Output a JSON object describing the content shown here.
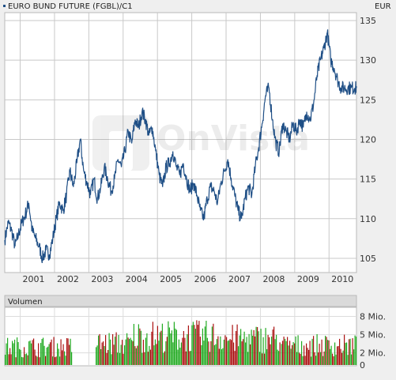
{
  "chart_data": [
    {
      "type": "line",
      "title": "EURO BUND FUTURE (FGBL)/C1",
      "unit_label": "EUR",
      "watermark": "OnVista",
      "x_ticks": [
        "2001",
        "2002",
        "2003",
        "2004",
        "2005",
        "2006",
        "2007",
        "2008",
        "2009",
        "2010"
      ],
      "x_range": [
        2000.55,
        2010.8
      ],
      "y_ticks": [
        105,
        110,
        115,
        120,
        125,
        130,
        135
      ],
      "ylim": [
        103.2,
        136.0
      ],
      "grid": true,
      "colors": {
        "line": "#1f4f86",
        "grid": "#c8c8c8",
        "background": "#ffffff"
      },
      "series": [
        {
          "x": [
            2000.55,
            2000.65,
            2000.75,
            2000.85,
            2000.95,
            2001.05,
            2001.15,
            2001.25,
            2001.35,
            2001.45,
            2001.55,
            2001.65,
            2001.75,
            2001.85,
            2001.95,
            2002.05,
            2002.15,
            2002.25,
            2002.35,
            2002.45,
            2002.55,
            2002.65,
            2002.75,
            2002.85,
            2002.95,
            2003.05,
            2003.15,
            2003.25,
            2003.35,
            2003.45,
            2003.55,
            2003.65,
            2003.75,
            2003.85,
            2003.95,
            2004.05,
            2004.15,
            2004.25,
            2004.35,
            2004.45,
            2004.55,
            2004.65,
            2004.75,
            2004.85,
            2004.95,
            2005.05,
            2005.15,
            2005.25,
            2005.35,
            2005.45,
            2005.55,
            2005.65,
            2005.75,
            2005.85,
            2005.95,
            2006.05,
            2006.15,
            2006.25,
            2006.35,
            2006.45,
            2006.55,
            2006.65,
            2006.75,
            2006.85,
            2006.95,
            2007.05,
            2007.15,
            2007.25,
            2007.35,
            2007.45,
            2007.55,
            2007.65,
            2007.75,
            2007.85,
            2007.95,
            2008.05,
            2008.15,
            2008.25,
            2008.35,
            2008.45,
            2008.55,
            2008.65,
            2008.75,
            2008.85,
            2008.95,
            2009.05,
            2009.15,
            2009.25,
            2009.35,
            2009.45,
            2009.55,
            2009.65,
            2009.75,
            2009.85,
            2009.95,
            2010.05,
            2010.15,
            2010.25,
            2010.35,
            2010.45,
            2010.55,
            2010.65,
            2010.75,
            2010.8
          ],
          "y": [
            107.3,
            109.5,
            108.5,
            106.5,
            108.0,
            109.5,
            110.5,
            112.0,
            108.5,
            107.5,
            106.5,
            105.0,
            106.0,
            105.5,
            107.5,
            110.0,
            112.0,
            111.0,
            113.0,
            116.0,
            114.0,
            117.0,
            120.0,
            116.0,
            114.5,
            113.0,
            115.0,
            112.5,
            114.0,
            116.5,
            115.0,
            113.5,
            115.0,
            117.5,
            116.5,
            118.5,
            121.0,
            119.5,
            122.5,
            121.5,
            123.5,
            122.5,
            120.5,
            121.5,
            118.5,
            115.5,
            114.0,
            116.5,
            117.0,
            118.5,
            116.5,
            115.5,
            117.0,
            115.0,
            113.5,
            114.5,
            113.0,
            111.0,
            110.0,
            112.5,
            114.0,
            113.5,
            112.0,
            114.5,
            116.0,
            117.5,
            115.0,
            113.0,
            111.0,
            110.0,
            112.5,
            114.0,
            113.0,
            116.5,
            119.0,
            122.0,
            125.5,
            126.5,
            122.5,
            119.5,
            118.5,
            122.0,
            121.0,
            120.0,
            122.0,
            121.0,
            122.5,
            121.5,
            123.5,
            122.5,
            124.5,
            128.0,
            130.0,
            131.5,
            133.5,
            130.0,
            129.0,
            127.5,
            126.5,
            126.5,
            126.5,
            126.5,
            126.5,
            126.5
          ]
        }
      ]
    },
    {
      "type": "bar",
      "title": "Volumen",
      "y_ticks": [
        "0",
        "2 Mio.",
        "5 Mio.",
        "8 Mio."
      ],
      "y_tick_values": [
        0,
        2,
        5,
        8
      ],
      "ylim": [
        0,
        9.5
      ],
      "colors": {
        "up": "#22aa22",
        "down": "#aa1111"
      },
      "segments": [
        {
          "x_start": 2000.55,
          "x_end": 2002.5,
          "level": 3.6
        },
        {
          "x_start": 2003.2,
          "x_end": 2004.3,
          "level": 4.3
        },
        {
          "x_start": 2004.3,
          "x_end": 2007.0,
          "level": 5.7
        },
        {
          "x_start": 2007.0,
          "x_end": 2008.6,
          "level": 5.2
        },
        {
          "x_start": 2008.6,
          "x_end": 2010.8,
          "level": 3.9
        }
      ]
    }
  ]
}
